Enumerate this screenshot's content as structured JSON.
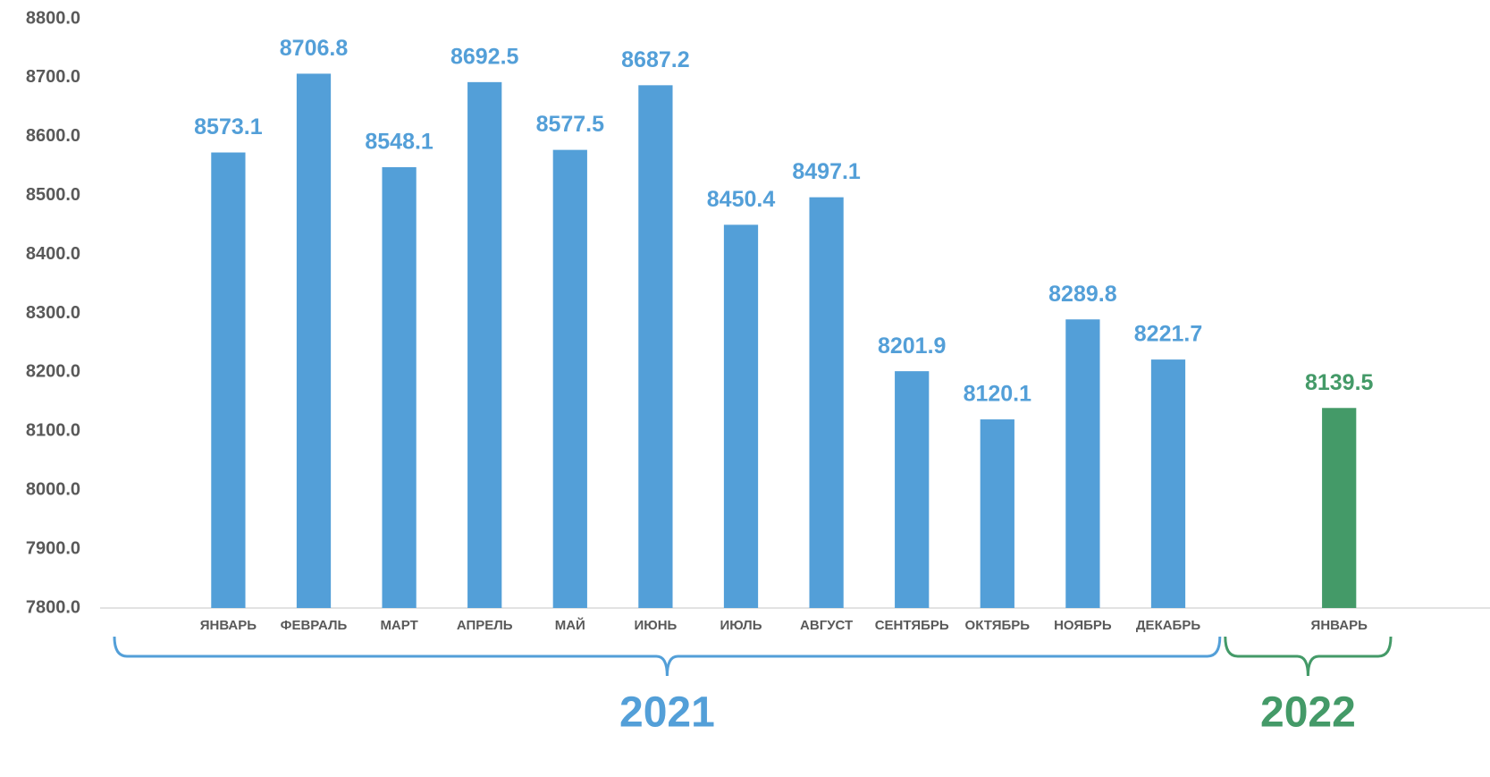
{
  "chart_data": {
    "type": "bar",
    "categories": [
      null,
      "ЯНВАРЬ",
      "ФЕВРАЛЬ",
      "МАРТ",
      "АПРЕЛЬ",
      "МАЙ",
      "ИЮНЬ",
      "ИЮЛЬ",
      "АВГУСТ",
      "СЕНТЯБРЬ",
      "ОКТЯБРЬ",
      "НОЯБРЬ",
      "ДЕКАБРЬ",
      null,
      "ЯНВАРЬ"
    ],
    "values": [
      null,
      8573.1,
      8706.8,
      8548.1,
      8692.5,
      8577.5,
      8687.2,
      8450.4,
      8497.1,
      8201.9,
      8120.1,
      8289.8,
      8221.7,
      null,
      8139.5
    ],
    "colors": [
      null,
      "#539fd8",
      "#539fd8",
      "#539fd8",
      "#539fd8",
      "#539fd8",
      "#539fd8",
      "#539fd8",
      "#539fd8",
      "#539fd8",
      "#539fd8",
      "#539fd8",
      "#539fd8",
      null,
      "#449a68"
    ],
    "ylim": [
      7800,
      8800
    ],
    "yticks": [
      {
        "value": 7800,
        "label": "7800.0"
      },
      {
        "value": 7900,
        "label": "7900.0"
      },
      {
        "value": 8000,
        "label": "8000.0"
      },
      {
        "value": 8100,
        "label": "8100.0"
      },
      {
        "value": 8200,
        "label": "8200.0"
      },
      {
        "value": 8300,
        "label": "8300.0"
      },
      {
        "value": 8400,
        "label": "8400.0"
      },
      {
        "value": 8500,
        "label": "8500.0"
      },
      {
        "value": 8600,
        "label": "8600.0"
      },
      {
        "value": 8700,
        "label": "8700.0"
      },
      {
        "value": 8800,
        "label": "8800.0"
      }
    ],
    "grid": false,
    "groups": [
      {
        "label": "2021",
        "start": 0,
        "end": 12,
        "color": "#539fd8"
      },
      {
        "label": "2022",
        "start": 13,
        "end": 14,
        "color": "#449a68"
      }
    ]
  }
}
